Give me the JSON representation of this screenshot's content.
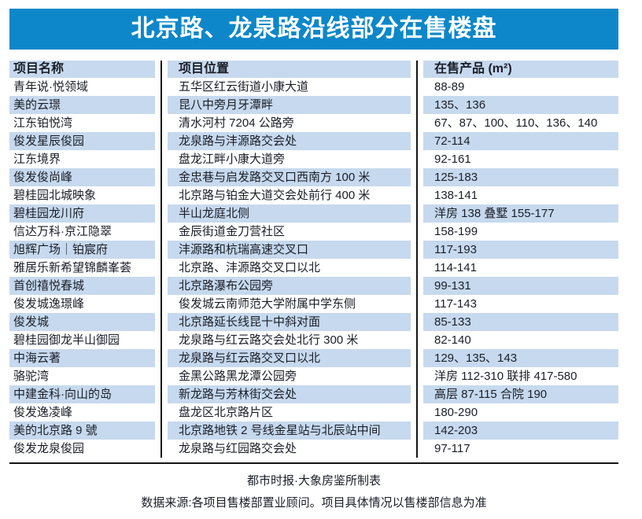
{
  "title": "北京路、龙泉路沿线部分在售楼盘",
  "chart_data": {
    "type": "table",
    "title": "北京路、龙泉路沿线部分在售楼盘",
    "columns": [
      "项目名称",
      "项目位置",
      "在售产品 (m²)"
    ],
    "rows": [
      [
        "青年说·悦领域",
        "五华区红云街道小康大道",
        "88-89"
      ],
      [
        "美的云璟",
        "昆八中旁月牙潭畔",
        "135、136"
      ],
      [
        "江东铂悦湾",
        "清水河村 7204 公路旁",
        "67、87、100、110、136、140"
      ],
      [
        "俊发星辰俊园",
        "龙泉路与沣源路交会处",
        "72-114"
      ],
      [
        "江东境界",
        "盘龙江畔小康大道旁",
        "92-161"
      ],
      [
        "俊发俊尚峰",
        "金忠巷与启发路交叉口西南方 100 米",
        "125-183"
      ],
      [
        "碧桂园北城映象",
        "北京路与铂金大道交会处前行 400 米",
        "138-141"
      ],
      [
        "碧桂园龙川府",
        "半山龙庭北侧",
        "洋房 138 叠墅 155-177"
      ],
      [
        "信达万科·京江隐翠",
        "金辰街道金刀营社区",
        "158-199"
      ],
      [
        "旭辉广场｜铂宸府",
        "沣源路和杭瑞高速交叉口",
        "117-193"
      ],
      [
        "雅居乐新希望锦麟峯荟",
        "北京路、沣源路交叉口以北",
        "114-141"
      ],
      [
        "首创禧悦春城",
        "北京路瀑布公园旁",
        "99-131"
      ],
      [
        "俊发城逸璟峰",
        "俊发城云南师范大学附属中学东侧",
        "117-143"
      ],
      [
        "俊发城",
        "北京路延长线昆十中斜对面",
        "85-133"
      ],
      [
        "碧桂园御龙半山御园",
        "龙泉路与红云路交会处北行 300 米",
        "82-140"
      ],
      [
        "中海云著",
        "龙泉路与红云路交叉口以北",
        "129、135、143"
      ],
      [
        "骆驼湾",
        "金黑公路黑龙潭公园旁",
        "洋房 112-310 联排 417-580"
      ],
      [
        "中建金科·向山的岛",
        "新龙路与芳林街交会处",
        "高层 87-115 合院 190"
      ],
      [
        "俊发逸凌峰",
        "盘龙区北京路片区",
        "180-290"
      ],
      [
        "美的北京路 9 號",
        "北京路地铁 2 号线金星站与北辰站中间",
        "142-203"
      ],
      [
        "俊发龙泉俊园",
        "龙泉路与红园路交会处",
        "97-117"
      ]
    ]
  },
  "footer": {
    "credit": "都市时报·大象房鉴所制表",
    "source": "数据来源:各项目售楼部置业顾问。项目具体情况以售楼部信息为准"
  },
  "colors": {
    "banner": "#0d87c9",
    "row-alt": "#c6d9ee",
    "ink": "#1b1e28",
    "line": "#141414"
  }
}
